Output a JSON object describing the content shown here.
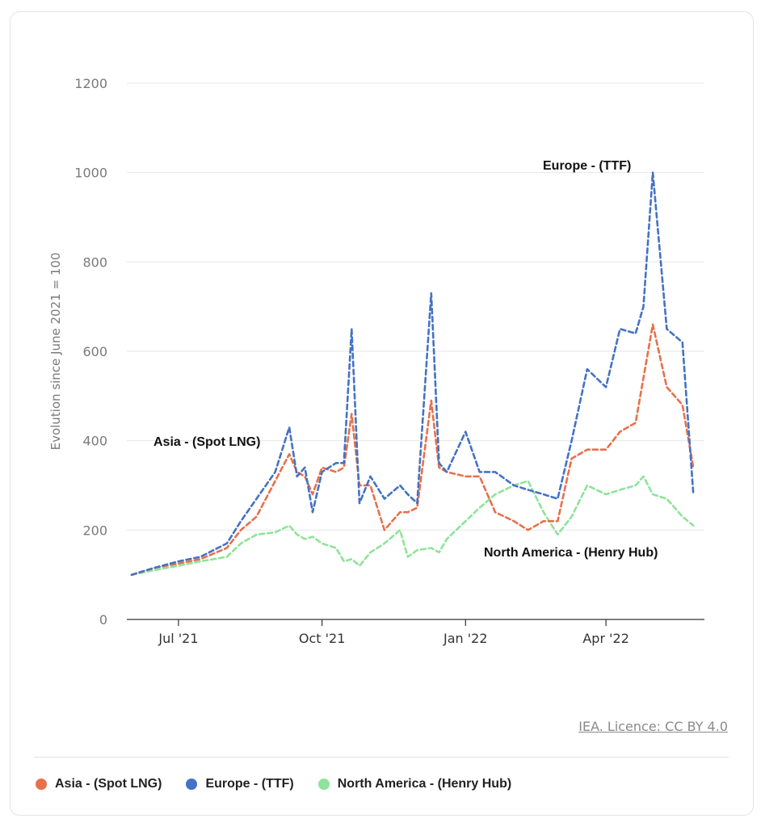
{
  "chart_data": {
    "type": "line",
    "ylabel": "Evolution since June 2021 = 100",
    "ylim": [
      0,
      1200
    ],
    "yticks": [
      "0",
      "200",
      "400",
      "600",
      "800",
      "1000",
      "1200"
    ],
    "xticks": [
      "Jul '21",
      "Oct '21",
      "Jan '22",
      "Apr '22"
    ],
    "x": [
      "2021-06-01",
      "2021-06-15",
      "2021-07-01",
      "2021-07-15",
      "2021-08-01",
      "2021-08-10",
      "2021-08-20",
      "2021-09-01",
      "2021-09-10",
      "2021-09-15",
      "2021-09-20",
      "2021-09-25",
      "2021-10-01",
      "2021-10-10",
      "2021-10-15",
      "2021-10-20",
      "2021-10-25",
      "2021-11-01",
      "2021-11-10",
      "2021-11-20",
      "2021-11-25",
      "2021-12-01",
      "2021-12-10",
      "2021-12-15",
      "2021-12-20",
      "2022-01-01",
      "2022-01-10",
      "2022-01-20",
      "2022-02-01",
      "2022-02-10",
      "2022-02-20",
      "2022-03-01",
      "2022-03-10",
      "2022-03-20",
      "2022-04-01",
      "2022-04-10",
      "2022-04-20",
      "2022-04-25",
      "2022-05-01",
      "2022-05-10",
      "2022-05-20",
      "2022-05-27"
    ],
    "series": [
      {
        "name": "Asia - (Spot LNG)",
        "color": "#e8704a",
        "values": [
          100,
          115,
          125,
          135,
          160,
          200,
          230,
          310,
          370,
          330,
          320,
          280,
          340,
          330,
          340,
          460,
          300,
          300,
          200,
          240,
          240,
          250,
          490,
          340,
          330,
          320,
          320,
          240,
          220,
          200,
          220,
          220,
          360,
          380,
          380,
          420,
          440,
          540,
          660,
          520,
          480,
          340
        ]
      },
      {
        "name": "Europe - (TTF)",
        "color": "#4472c4",
        "values": [
          100,
          115,
          130,
          140,
          170,
          220,
          270,
          330,
          430,
          320,
          340,
          240,
          330,
          350,
          350,
          650,
          260,
          320,
          270,
          300,
          280,
          260,
          730,
          350,
          330,
          420,
          330,
          330,
          300,
          290,
          280,
          270,
          400,
          560,
          520,
          650,
          640,
          700,
          1000,
          650,
          620,
          280
        ]
      },
      {
        "name": "North America - (Henry Hub)",
        "color": "#8fe39a",
        "values": [
          100,
          110,
          120,
          130,
          140,
          170,
          190,
          195,
          210,
          190,
          180,
          185,
          170,
          160,
          130,
          135,
          120,
          150,
          170,
          200,
          140,
          155,
          160,
          150,
          180,
          220,
          250,
          280,
          300,
          310,
          240,
          190,
          230,
          300,
          280,
          290,
          300,
          320,
          280,
          270,
          230,
          210
        ]
      }
    ],
    "annotations": [
      "Asia - (Spot LNG)",
      "Europe - (TTF)",
      "North America - (Henry Hub)"
    ]
  },
  "source_text": "IEA. Licence: CC BY 4.0",
  "legend": [
    {
      "label": "Asia - (Spot LNG)",
      "color": "#e8704a"
    },
    {
      "label": "Europe - (TTF)",
      "color": "#4472c4"
    },
    {
      "label": "North America - (Henry Hub)",
      "color": "#8fe39a"
    }
  ]
}
